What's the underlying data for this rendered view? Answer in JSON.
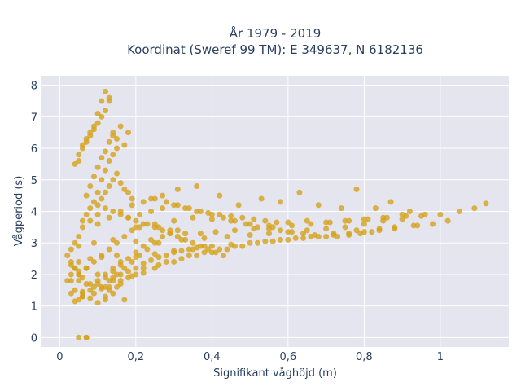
{
  "chart_data": {
    "type": "scatter",
    "title_line1": "År 1979 - 2019",
    "title_line2": "Koordinat (Sweref 99 TM): E 349637, N 6182136",
    "xlabel": "Signifikant våghöjd (m)",
    "ylabel": "Vågperiod (s)",
    "xlim": [
      -0.05,
      1.18
    ],
    "ylim": [
      -0.3,
      8.3
    ],
    "x_ticks": [
      0,
      0.2,
      0.4,
      0.6,
      0.8,
      1
    ],
    "x_tick_labels": [
      "0",
      "0,2",
      "0,4",
      "0,6",
      "0,8",
      "1"
    ],
    "y_ticks": [
      0,
      1,
      2,
      3,
      4,
      5,
      6,
      7,
      8
    ],
    "y_tick_labels": [
      "0",
      "1",
      "2",
      "3",
      "4",
      "5",
      "6",
      "7",
      "8"
    ],
    "grid": true,
    "legend": "none",
    "colors": {
      "marker": "#d4a21c",
      "plot_bg": "#e5e5f0",
      "grid": "#ffffff",
      "text": "#2a3f5f"
    },
    "series": [
      {
        "x": [
          0.05,
          0.07,
          0.07,
          0.04,
          0.05,
          0.06,
          0.08,
          0.1,
          0.12,
          0.03,
          0.04,
          0.06,
          0.09,
          0.11,
          0.13,
          0.15,
          0.17,
          0.02,
          0.03,
          0.05,
          0.07,
          0.1,
          0.14,
          0.16,
          0.19,
          0.22,
          0.25,
          0.28,
          0.03,
          0.05,
          0.08,
          0.11,
          0.15,
          0.2,
          0.25,
          0.3,
          0.35,
          0.4,
          0.45,
          0.05,
          0.09,
          0.14,
          0.2,
          0.26,
          0.32,
          0.38,
          0.44,
          0.5,
          0.55,
          0.6,
          0.65,
          0.7,
          0.75,
          0.8,
          0.85,
          0.9,
          0.95,
          1.0,
          1.05,
          1.09,
          1.12,
          0.2,
          0.25,
          0.3,
          0.35,
          0.4,
          0.45,
          0.5,
          0.55,
          0.6,
          0.65,
          0.7,
          0.75,
          0.8,
          0.85,
          0.9,
          0.24,
          0.27,
          0.31,
          0.36,
          0.42,
          0.47,
          0.53,
          0.58,
          0.63,
          0.68,
          0.74,
          0.78,
          0.83,
          0.87,
          0.92,
          0.04,
          0.05,
          0.06,
          0.07,
          0.08,
          0.09,
          0.1,
          0.11,
          0.12,
          0.13,
          0.14,
          0.05,
          0.06,
          0.07,
          0.08,
          0.09,
          0.1,
          0.11,
          0.12,
          0.13,
          0.07,
          0.08,
          0.09,
          0.1,
          0.11,
          0.12,
          0.13,
          0.14,
          0.15,
          0.16,
          0.17,
          0.18,
          0.1,
          0.11,
          0.12,
          0.13,
          0.14,
          0.15,
          0.16,
          0.17,
          0.18,
          0.19,
          0.06,
          0.07,
          0.08,
          0.09,
          0.1,
          0.11,
          0.12,
          0.13,
          0.14,
          0.15,
          0.04,
          0.05,
          0.06,
          0.07,
          0.12,
          0.13,
          0.14,
          0.16,
          0.18,
          0.2,
          0.22,
          0.26,
          0.3,
          0.34,
          0.38,
          0.42,
          0.46,
          0.5,
          0.54,
          0.58,
          0.62,
          0.66,
          0.72,
          0.78,
          0.84,
          0.88,
          0.93,
          0.98,
          1.02,
          0.32,
          0.36,
          0.4,
          0.44,
          0.48,
          0.52,
          0.56,
          0.6,
          0.64,
          0.68,
          0.72,
          0.76,
          0.8,
          0.84,
          0.88,
          0.94,
          0.18,
          0.21,
          0.24,
          0.27,
          0.3,
          0.33,
          0.36,
          0.39,
          0.42,
          0.45,
          0.48,
          0.51,
          0.54,
          0.57,
          0.12,
          0.14,
          0.16,
          0.18,
          0.2,
          0.22,
          0.24,
          0.26,
          0.28,
          0.3,
          0.32,
          0.34,
          0.36,
          0.38,
          0.09,
          0.11,
          0.13,
          0.15,
          0.17,
          0.19,
          0.21,
          0.23,
          0.25,
          0.27,
          0.29,
          0.31,
          0.06,
          0.08,
          0.1,
          0.12,
          0.14,
          0.16,
          0.18,
          0.2,
          0.22,
          0.24,
          0.03,
          0.04,
          0.05,
          0.06,
          0.08,
          0.1,
          0.12,
          0.14,
          0.16,
          0.18,
          0.2,
          0.22,
          0.26,
          0.29,
          0.33,
          0.37,
          0.41,
          0.46,
          0.51,
          0.56,
          0.61,
          0.66,
          0.71,
          0.76,
          0.81,
          0.86,
          0.91,
          0.96,
          0.03,
          0.02,
          0.03,
          0.04,
          0.05,
          0.06,
          0.08,
          0.1,
          0.12,
          0.14,
          0.16,
          0.05,
          0.07,
          0.09,
          0.11,
          0.13,
          0.15,
          0.17,
          0.19,
          0.21,
          0.23,
          0.25,
          0.27,
          0.29,
          0.31,
          0.33,
          0.35,
          0.37,
          0.39,
          0.41,
          0.43,
          0.1,
          0.13,
          0.16,
          0.19,
          0.22,
          0.25,
          0.28,
          0.31,
          0.34,
          0.37,
          0.4,
          0.43,
          0.46,
          0.49,
          0.52,
          0.55,
          0.58,
          0.61,
          0.64,
          0.67,
          0.7,
          0.73,
          0.76,
          0.79,
          0.82
        ],
        "y": [
          0.0,
          0.0,
          0.0,
          1.15,
          1.2,
          1.3,
          1.25,
          1.1,
          1.2,
          1.4,
          1.5,
          1.45,
          1.6,
          1.55,
          1.5,
          1.6,
          1.2,
          1.8,
          2.0,
          2.1,
          2.2,
          2.0,
          1.9,
          1.8,
          1.95,
          2.05,
          2.2,
          2.4,
          2.3,
          2.4,
          2.5,
          2.55,
          2.6,
          2.55,
          2.65,
          2.75,
          2.8,
          2.9,
          2.95,
          2.9,
          3.0,
          3.1,
          3.05,
          3.0,
          3.1,
          3.15,
          3.2,
          3.25,
          3.3,
          3.35,
          3.4,
          3.45,
          3.5,
          3.6,
          3.7,
          3.75,
          3.85,
          3.9,
          4.0,
          4.1,
          4.25,
          3.5,
          3.6,
          3.7,
          3.8,
          3.75,
          3.7,
          3.6,
          3.55,
          3.65,
          3.7,
          3.65,
          3.7,
          3.75,
          3.8,
          3.9,
          4.4,
          4.5,
          4.7,
          4.8,
          4.5,
          4.2,
          4.4,
          4.3,
          4.6,
          4.2,
          4.1,
          4.7,
          4.1,
          4.3,
          4.0,
          5.5,
          5.6,
          6.1,
          6.3,
          6.5,
          6.6,
          6.8,
          7.0,
          7.2,
          7.5,
          6.4,
          5.8,
          6.0,
          6.2,
          6.4,
          6.7,
          7.1,
          7.5,
          7.8,
          7.6,
          4.5,
          4.8,
          5.1,
          5.4,
          5.7,
          5.9,
          6.2,
          6.5,
          6.3,
          6.7,
          6.1,
          6.5,
          4.2,
          4.4,
          4.6,
          4.8,
          5.0,
          5.2,
          4.9,
          4.7,
          4.6,
          4.4,
          3.7,
          3.9,
          4.1,
          4.3,
          4.6,
          5.0,
          5.3,
          5.6,
          5.8,
          6.0,
          2.2,
          1.8,
          1.4,
          1.7,
          1.3,
          1.6,
          1.4,
          1.7,
          1.9,
          2.0,
          2.2,
          2.3,
          2.4,
          2.6,
          2.7,
          2.8,
          2.9,
          3.0,
          3.05,
          3.1,
          3.15,
          3.2,
          3.3,
          3.4,
          3.45,
          3.5,
          3.55,
          3.6,
          3.7,
          2.5,
          2.6,
          2.7,
          2.8,
          2.9,
          3.0,
          3.05,
          3.1,
          3.15,
          3.2,
          3.25,
          3.3,
          3.35,
          3.4,
          3.45,
          3.55,
          3.8,
          3.9,
          4.0,
          4.1,
          4.2,
          4.1,
          4.0,
          3.95,
          3.9,
          3.85,
          3.8,
          3.75,
          3.7,
          3.65,
          1.6,
          1.8,
          2.0,
          2.1,
          2.2,
          2.35,
          2.45,
          2.55,
          2.6,
          2.7,
          2.75,
          2.8,
          2.85,
          2.9,
          1.4,
          1.6,
          1.8,
          2.0,
          2.2,
          2.4,
          2.6,
          2.8,
          3.0,
          3.2,
          3.3,
          3.4,
          1.3,
          1.5,
          1.7,
          1.9,
          2.1,
          2.3,
          2.5,
          2.7,
          2.9,
          3.1,
          2.8,
          3.0,
          3.2,
          3.5,
          3.7,
          3.9,
          4.1,
          4.0,
          3.9,
          3.8,
          3.7,
          3.6,
          3.5,
          3.4,
          3.3,
          3.3,
          3.35,
          3.4,
          3.45,
          3.5,
          3.55,
          3.6,
          3.65,
          3.7,
          3.75,
          3.8,
          3.85,
          3.9,
          1.8,
          2.6,
          2.4,
          2.2,
          2.0,
          1.9,
          1.7,
          1.8,
          2.0,
          2.2,
          2.4,
          2.0,
          2.2,
          2.4,
          2.6,
          2.8,
          3.0,
          3.2,
          3.4,
          3.5,
          3.6,
          3.5,
          3.4,
          3.3,
          3.2,
          3.1,
          3.0,
          2.9,
          2.8,
          2.7,
          2.6,
          3.6,
          3.8,
          4.0,
          4.2,
          4.3,
          4.4,
          4.3,
          4.2,
          4.1,
          4.0,
          3.9,
          3.8,
          3.7,
          3.6,
          3.5,
          3.45,
          3.4,
          3.35,
          3.3,
          3.25,
          3.2,
          3.2,
          3.25,
          3.3,
          3.35
        ]
      }
    ]
  }
}
